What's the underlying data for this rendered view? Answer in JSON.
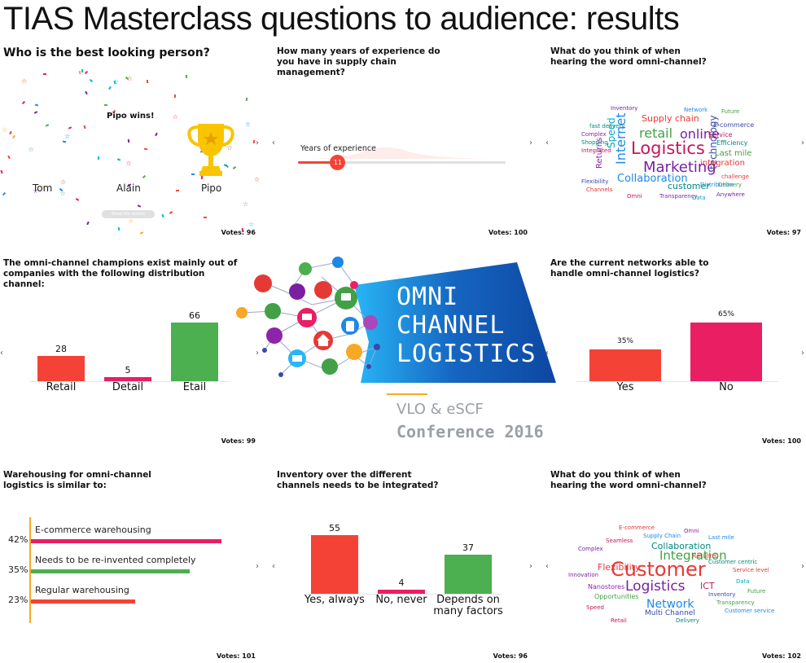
{
  "title": "TIAS Masterclass questions to audience: results",
  "panels": {
    "best_looking": {
      "question": "Who is the best looking person?",
      "winner_text": "Pipo wins!",
      "names": [
        "Tom",
        "Alain",
        "Pipo"
      ],
      "button_label": "Show the winner",
      "votes": "Votes: 96"
    },
    "experience": {
      "question": "How many years of experience do you have in supply chain management?",
      "slider_label": "Years of experience",
      "slider_value": "11",
      "slider_fraction": 0.19,
      "votes": "Votes: 100"
    },
    "omni_word_1": {
      "question": "What do you think of when hearing the word omni-channel?",
      "votes": "Votes: 97",
      "words": [
        {
          "t": "Logistics",
          "c": "#c2185b"
        },
        {
          "t": "Marketing",
          "c": "#7b1fa2"
        },
        {
          "t": "retail",
          "c": "#43a047"
        },
        {
          "t": "online",
          "c": "#7b1fa2"
        },
        {
          "t": "Collaboration",
          "c": "#1e88e5"
        },
        {
          "t": "customer",
          "c": "#00897b"
        },
        {
          "t": "Supply chain",
          "c": "#e53935"
        },
        {
          "t": "Internet",
          "c": "#1e88e5"
        },
        {
          "t": "Speed",
          "c": "#00acc1"
        },
        {
          "t": "technology",
          "c": "#3949ab"
        },
        {
          "t": "Returns",
          "c": "#8e24aa"
        },
        {
          "t": "Last mile",
          "c": "#43a047"
        },
        {
          "t": "integration",
          "c": "#e53935"
        },
        {
          "t": "E-commerce",
          "c": "#3949ab"
        },
        {
          "t": "Service",
          "c": "#c2185b"
        },
        {
          "t": "Efficiency",
          "c": "#00897b"
        },
        {
          "t": "challenge",
          "c": "#e53935"
        },
        {
          "t": "Anywhere",
          "c": "#7b1fa2"
        },
        {
          "t": "Delivery",
          "c": "#43a047"
        },
        {
          "t": "Distribution",
          "c": "#1e88e5"
        },
        {
          "t": "Complex",
          "c": "#8e24aa"
        },
        {
          "t": "Shopping",
          "c": "#00897b"
        },
        {
          "t": "Integrated",
          "c": "#c2185b"
        },
        {
          "t": "Flexibility",
          "c": "#3949ab"
        },
        {
          "t": "Channels",
          "c": "#e53935"
        },
        {
          "t": "Future",
          "c": "#43a047"
        },
        {
          "t": "Network",
          "c": "#1e88e5"
        },
        {
          "t": "Inventory",
          "c": "#7b1fa2"
        },
        {
          "t": "Data",
          "c": "#00acc1"
        },
        {
          "t": "Transparency",
          "c": "#8e24aa"
        },
        {
          "t": "Omni",
          "c": "#c2185b"
        },
        {
          "t": "fast delivery",
          "c": "#00897b"
        }
      ]
    },
    "distribution": {
      "question": "The omni-channel champions exist mainly out of companies with the following distribution channel:",
      "votes": "Votes: 99"
    },
    "networks": {
      "question": "Are the current networks able to handle omni-channel logistics?",
      "votes": "Votes: 100"
    },
    "warehousing": {
      "question": "Warehousing for omni-channel logistics is similar to:",
      "votes": "Votes: 101",
      "items": [
        {
          "label": "E-commerce warehousing",
          "pct": "42%",
          "value": 42,
          "color": "#e91e63"
        },
        {
          "label": "Needs to be re-invented completely",
          "pct": "35%",
          "value": 35,
          "color": "#4caf50"
        },
        {
          "label": "Regular warehousing",
          "pct": "23%",
          "value": 23,
          "color": "#f44336"
        }
      ]
    },
    "inventory": {
      "question": "Inventory over the different channels needs to be integrated?",
      "votes": "Votes: 96"
    },
    "omni_word_2": {
      "question": "What do you think of when hearing the word omni-channel?",
      "votes": "Votes: 102",
      "words": [
        {
          "t": "Customer",
          "c": "#e53935"
        },
        {
          "t": "Integration",
          "c": "#43a047"
        },
        {
          "t": "Logistics",
          "c": "#7b1fa2"
        },
        {
          "t": "Network",
          "c": "#1e88e5"
        },
        {
          "t": "Flexibility",
          "c": "#e53935"
        },
        {
          "t": "Collaboration",
          "c": "#00897b"
        },
        {
          "t": "ICT",
          "c": "#c2185b"
        },
        {
          "t": "Multi Channel",
          "c": "#3949ab"
        },
        {
          "t": "Nanostores",
          "c": "#8e24aa"
        },
        {
          "t": "Opportunities",
          "c": "#43a047"
        },
        {
          "t": "Supply Chain",
          "c": "#1e88e5"
        },
        {
          "t": "Returns",
          "c": "#e53935"
        },
        {
          "t": "Complex",
          "c": "#7b1fa2"
        },
        {
          "t": "Customer centric",
          "c": "#00897b"
        },
        {
          "t": "Speed",
          "c": "#c2185b"
        },
        {
          "t": "Inventory",
          "c": "#3949ab"
        },
        {
          "t": "Service level",
          "c": "#e53935"
        },
        {
          "t": "Transparency",
          "c": "#43a047"
        },
        {
          "t": "Customer service",
          "c": "#1e88e5"
        },
        {
          "t": "Omni",
          "c": "#8e24aa"
        },
        {
          "t": "Seamless",
          "c": "#c2185b"
        },
        {
          "t": "Data",
          "c": "#00acc1"
        },
        {
          "t": "Innovation",
          "c": "#7b1fa2"
        },
        {
          "t": "Future",
          "c": "#43a047"
        },
        {
          "t": "E-commerce",
          "c": "#e53935"
        },
        {
          "t": "Last mile",
          "c": "#1e88e5"
        },
        {
          "t": "Delivery",
          "c": "#00897b"
        },
        {
          "t": "Retail",
          "c": "#c2185b"
        }
      ]
    }
  },
  "logo": {
    "line1": "OMNI",
    "line2": "CHANNEL",
    "line3": "LOGISTICS",
    "sub1": "VLO & eSCF",
    "sub2": "Conference 2016"
  },
  "colors": {
    "red": "#f44336",
    "pink": "#e91e63",
    "green": "#4caf50",
    "logo_blue": "#1565c0",
    "logo_cyan": "#29b6f6",
    "logo_sub_gray": "#9aa0a6",
    "logo_accent": "#f9a825"
  },
  "chart_data": [
    {
      "type": "bar",
      "title": "The omni-channel champions exist mainly out of companies with the following distribution channel:",
      "categories": [
        "Retail",
        "Detail",
        "Etail"
      ],
      "values": [
        28,
        5,
        66
      ],
      "colors": [
        "#f44336",
        "#e91e63",
        "#4caf50"
      ],
      "ylim": [
        0,
        66
      ]
    },
    {
      "type": "bar",
      "title": "Are the current networks able to handle omni-channel logistics?",
      "categories": [
        "Yes",
        "No"
      ],
      "values": [
        35,
        65
      ],
      "value_labels": [
        "35%",
        "65%"
      ],
      "colors": [
        "#f44336",
        "#e91e63"
      ],
      "ylim": [
        0,
        65
      ]
    },
    {
      "type": "bar",
      "title": "Inventory over the different channels needs to be integrated?",
      "categories": [
        "Yes, always",
        "No, never",
        "Depends on many factors"
      ],
      "values": [
        55,
        4,
        37
      ],
      "colors": [
        "#f44336",
        "#e91e63",
        "#4caf50"
      ],
      "ylim": [
        0,
        55
      ]
    },
    {
      "type": "bar",
      "orientation": "horizontal",
      "title": "Warehousing for omni-channel logistics is similar to:",
      "categories": [
        "E-commerce warehousing",
        "Needs to be re-invented completely",
        "Regular warehousing"
      ],
      "values": [
        42,
        35,
        23
      ],
      "value_labels": [
        "42%",
        "35%",
        "23%"
      ],
      "colors": [
        "#e91e63",
        "#4caf50",
        "#f44336"
      ],
      "xlim": [
        0,
        42
      ]
    }
  ]
}
